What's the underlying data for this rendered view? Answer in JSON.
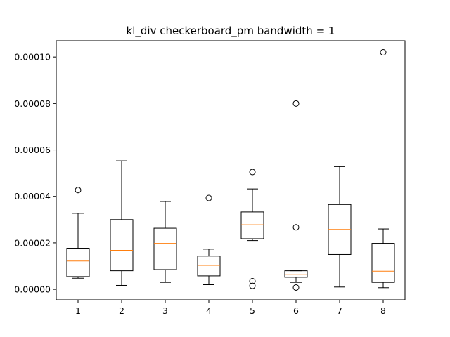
{
  "chart_data": {
    "type": "box",
    "title": "kl_div checkerboard_pm  bandwidth = 1",
    "xlabel": "",
    "ylabel": "",
    "ylim": [
      -4.5e-06,
      0.000107
    ],
    "grid": false,
    "legend": "none",
    "categories": [
      "1",
      "2",
      "3",
      "4",
      "5",
      "6",
      "7",
      "8"
    ],
    "yticks": [
      0,
      2e-05,
      4e-05,
      6e-05,
      8e-05,
      0.0001
    ],
    "ytick_labels": [
      "0.00000",
      "0.00002",
      "0.00004",
      "0.00006",
      "0.00008",
      "0.00010"
    ],
    "boxes": [
      {
        "label": "1",
        "whisker_low": 4.8e-06,
        "q1": 5.5e-06,
        "median": 1.22e-05,
        "q3": 1.77e-05,
        "whisker_high": 3.27e-05,
        "outliers": [
          4.27e-05
        ]
      },
      {
        "label": "2",
        "whisker_low": 1.7e-06,
        "q1": 8e-06,
        "median": 1.68e-05,
        "q3": 3e-05,
        "whisker_high": 5.53e-05,
        "outliers": []
      },
      {
        "label": "3",
        "whisker_low": 3e-06,
        "q1": 8.5e-06,
        "median": 1.98e-05,
        "q3": 2.63e-05,
        "whisker_high": 3.78e-05,
        "outliers": []
      },
      {
        "label": "4",
        "whisker_low": 2e-06,
        "q1": 5.8e-06,
        "median": 1.03e-05,
        "q3": 1.43e-05,
        "whisker_high": 1.73e-05,
        "outliers": [
          3.93e-05
        ]
      },
      {
        "label": "5",
        "whisker_low": 2.1e-05,
        "q1": 2.18e-05,
        "median": 2.78e-05,
        "q3": 3.33e-05,
        "whisker_high": 4.32e-05,
        "outliers": [
          5.05e-05,
          3.5e-06,
          1.5e-06
        ]
      },
      {
        "label": "6",
        "whisker_low": 3e-06,
        "q1": 5.2e-06,
        "median": 6.3e-06,
        "q3": 8e-06,
        "whisker_high": 8e-06,
        "outliers": [
          8e-05,
          2.67e-05,
          8e-07
        ]
      },
      {
        "label": "7",
        "whisker_low": 1e-06,
        "q1": 1.5e-05,
        "median": 2.58e-05,
        "q3": 3.65e-05,
        "whisker_high": 5.28e-05,
        "outliers": []
      },
      {
        "label": "8",
        "whisker_low": 7e-07,
        "q1": 3e-06,
        "median": 7.8e-06,
        "q3": 1.98e-05,
        "whisker_high": 2.6e-05,
        "outliers": [
          0.000102
        ]
      }
    ],
    "colors": {
      "box": "#000000",
      "median": "#ff7f0e",
      "outlier": "#000000",
      "axes": "#000000"
    }
  }
}
